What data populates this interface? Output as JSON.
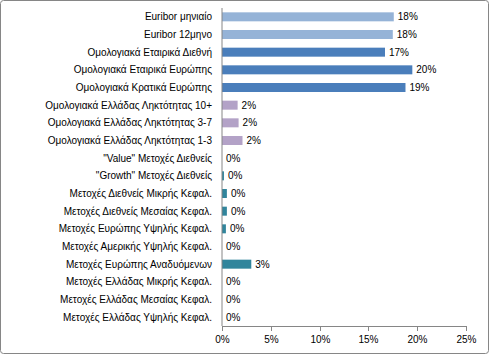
{
  "chart_data": {
    "type": "bar",
    "orientation": "horizontal",
    "categories": [
      "Euribor μηνιαίο",
      "Euribor 12μηνο",
      "Ομολογιακά Εταιρικά Διεθνή",
      "Ομολογιακά Εταιρικά Ευρώπης",
      "Ομολογιακά Κρατικά Ευρώπης",
      "Ομολογιακά Ελλάδας Ληκτότητας 10+",
      "Ομολογιακά Ελλάδας  Ληκτότητας 3-7",
      "Ομολογιακά Ελλάδας Ληκτότητας 1-3",
      "\"Value\" Μετοχές Διεθνείς",
      "\"Growth\" Μετοχές Διεθνείς",
      "Μετοχές Διεθνείς Μικρής Κεφαλ.",
      "Μετοχές Διεθνείς Μεσαίας  Κεφαλ.",
      "Μετοχές Ευρώπης Υψηλής Κεφαλ.",
      "Μετοχές Αμερικής Υψηλής Κεφαλ.",
      "Μετοχές Ευρώπης Αναδυόμενων",
      "Μετοχές Ελλάδας Μικρής Κεφαλ.",
      "Μετοχές Ελλάδας Μεσαίας Κεφαλ.",
      "Μετοχές Ελλάδας Υψηλής Κεφαλ."
    ],
    "values": [
      17.6,
      17.5,
      16.7,
      19.5,
      18.8,
      1.6,
      1.7,
      2.1,
      0,
      0.2,
      0.5,
      0.5,
      0.4,
      0,
      3.0,
      0,
      0,
      0
    ],
    "value_labels": [
      "18%",
      "18%",
      "17%",
      "20%",
      "19%",
      "2%",
      "2%",
      "2%",
      "0%",
      "0%",
      "0%",
      "0%",
      "0%",
      "0%",
      "3%",
      "0%",
      "0%",
      "0%"
    ],
    "colors": [
      "#95b3d7",
      "#95b3d7",
      "#4a7ebb",
      "#4a7ebb",
      "#4a7ebb",
      "#b3a2c7",
      "#b3a2c7",
      "#b3a2c7",
      "#31859c",
      "#31859c",
      "#31859c",
      "#31859c",
      "#31859c",
      "#31859c",
      "#31859c",
      "#31859c",
      "#31859c",
      "#31859c"
    ],
    "xlim": [
      0,
      25
    ],
    "xticks": [
      {
        "value": 0,
        "label": "0%"
      },
      {
        "value": 5,
        "label": "5%"
      },
      {
        "value": 10,
        "label": "10%"
      },
      {
        "value": 15,
        "label": "15%"
      },
      {
        "value": 20,
        "label": "20%"
      },
      {
        "value": 25,
        "label": "25%"
      }
    ],
    "grid": false,
    "data_labels": true
  }
}
